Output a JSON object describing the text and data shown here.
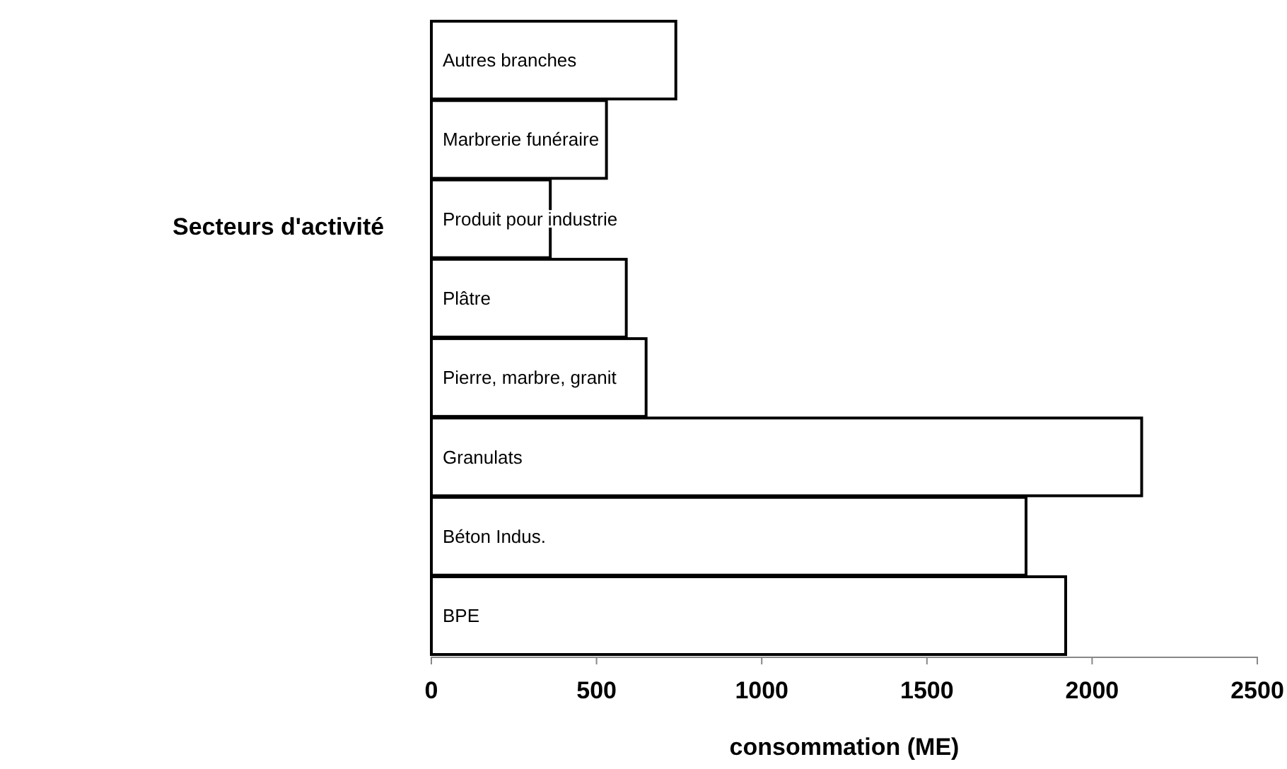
{
  "chart_data": {
    "type": "bar",
    "orientation": "horizontal",
    "categories": [
      "Autres branches",
      "Marbrerie funéraire",
      "Produit pour industrie",
      "Plâtre",
      "Pierre, marbre, granit",
      "Granulats",
      "Béton Indus.",
      "BPE"
    ],
    "values": [
      740,
      530,
      360,
      590,
      650,
      2150,
      1800,
      1920
    ],
    "color": "#ffffff",
    "xlim": [
      0,
      2500
    ],
    "xticks": [
      0,
      500,
      1000,
      1500,
      2000,
      2500
    ],
    "xlabel": "consommation (ME)",
    "ylabel": "Secteurs d'activité",
    "grid": false
  }
}
